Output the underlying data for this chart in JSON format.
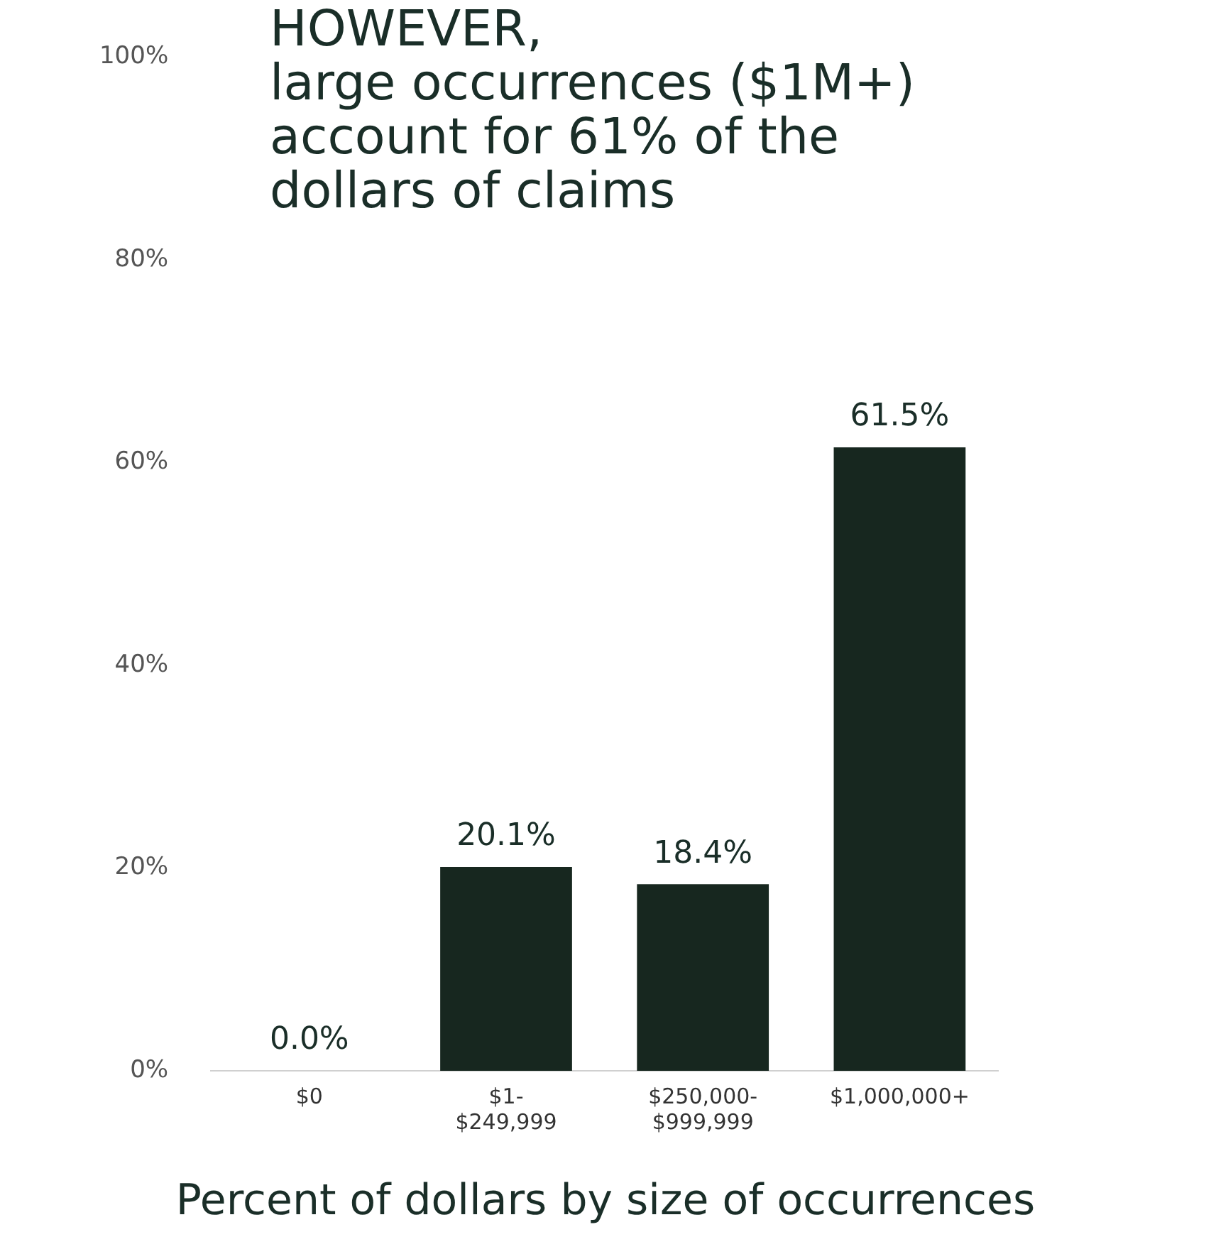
{
  "chart_data": {
    "type": "bar",
    "title": "HOWEVER,\nlarge occurrences ($1M+)\naccount for 61% of the\ndollars of claims",
    "xlabel": "Percent of dollars by size of occurrences",
    "categories": [
      "$0",
      "$1-\n$249,999",
      "$250,000-\n$999,999",
      "$1,000,000+"
    ],
    "values": [
      0.0,
      20.1,
      18.4,
      61.5
    ],
    "color": "#17271f",
    "value_labels": [
      "0.0%",
      "20.1%",
      "18.4%",
      "61.5%"
    ],
    "ylim": [
      0,
      100
    ],
    "yticks": [
      {
        "value": 0,
        "label": "0%"
      },
      {
        "value": 20,
        "label": "20%"
      },
      {
        "value": 40,
        "label": "40%"
      },
      {
        "value": 60,
        "label": "60%"
      },
      {
        "value": 80,
        "label": "80%"
      },
      {
        "value": 100,
        "label": "100%"
      }
    ]
  }
}
